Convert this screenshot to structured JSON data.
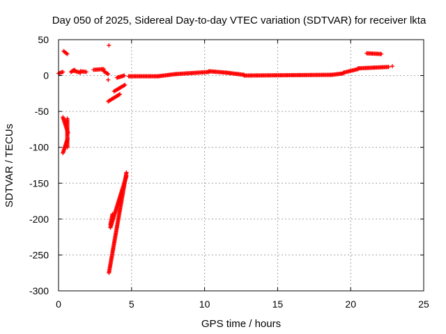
{
  "chart_data": {
    "type": "scatter",
    "title": "Day 050 of 2025, Sidereal Day-to-day VTEC variation (SDTVAR) for receiver lkta",
    "xlabel": "GPS time / hours",
    "ylabel": "SDTVAR / TECUs",
    "xlim": [
      0,
      25
    ],
    "ylim": [
      -300,
      50
    ],
    "xticks": [
      0,
      5,
      10,
      15,
      20,
      25
    ],
    "yticks": [
      50,
      0,
      -50,
      -100,
      -150,
      -200,
      -250,
      -300
    ],
    "grid": true,
    "legend": "none",
    "marker": "plus",
    "color": "#ff0000",
    "series": [
      {
        "segments": [
          {
            "x": [
              0.0,
              0.3
            ],
            "y": [
              3,
              5
            ]
          },
          {
            "x": [
              0.35,
              0.6
            ],
            "y": [
              34,
              30
            ]
          },
          {
            "x": [
              0.3,
              0.65
            ],
            "y": [
              -58,
              -80
            ]
          },
          {
            "x": [
              0.3,
              0.62
            ],
            "y": [
              -108,
              -88
            ]
          },
          {
            "x": [
              0.6,
              0.6
            ],
            "y": [
              -60,
              -100
            ]
          },
          {
            "x": [
              0.85,
              1.1
            ],
            "y": [
              5,
              8
            ]
          },
          {
            "x": [
              1.0,
              1.5
            ],
            "y": [
              7,
              4
            ]
          },
          {
            "x": [
              1.5,
              1.9
            ],
            "y": [
              6,
              5
            ]
          },
          {
            "x": [
              2.4,
              3.1
            ],
            "y": [
              8,
              9
            ]
          },
          {
            "x": [
              3.1,
              3.4
            ],
            "y": [
              6,
              2
            ]
          },
          {
            "x": [
              3.4,
              4.2
            ],
            "y": [
              -36,
              -26
            ]
          },
          {
            "x": [
              3.8,
              4.55
            ],
            "y": [
              -22,
              -13
            ]
          },
          {
            "x": [
              3.55,
              3.7
            ],
            "y": [
              -208,
              -193
            ]
          },
          {
            "x": [
              3.45,
              4.65
            ],
            "y": [
              -275,
              -135
            ]
          },
          {
            "x": [
              3.55,
              4.65
            ],
            "y": [
              -212,
              -140
            ]
          },
          {
            "x": [
              4.0,
              4.5
            ],
            "y": [
              -3,
              0
            ]
          },
          {
            "x": [
              4.8,
              6.8
            ],
            "y": [
              -1,
              -1
            ]
          },
          {
            "x": [
              6.8,
              8.0
            ],
            "y": [
              -1,
              2
            ]
          },
          {
            "x": [
              8.0,
              10.3
            ],
            "y": [
              2,
              5
            ]
          },
          {
            "x": [
              10.3,
              11.5
            ],
            "y": [
              6,
              4
            ]
          },
          {
            "x": [
              11.5,
              12.7
            ],
            "y": [
              4,
              1
            ]
          },
          {
            "x": [
              12.7,
              18.7
            ],
            "y": [
              0,
              1
            ]
          },
          {
            "x": [
              18.7,
              19.5
            ],
            "y": [
              1,
              3
            ]
          },
          {
            "x": [
              19.5,
              20.5
            ],
            "y": [
              4,
              9
            ]
          },
          {
            "x": [
              20.5,
              22.6
            ],
            "y": [
              10,
              12
            ]
          },
          {
            "x": [
              21.1,
              22.1
            ],
            "y": [
              31,
              30
            ]
          }
        ],
        "points": [
          {
            "x": 3.4,
            "y": -6
          },
          {
            "x": 3.45,
            "y": 42
          },
          {
            "x": 22.85,
            "y": 13
          }
        ]
      }
    ]
  }
}
